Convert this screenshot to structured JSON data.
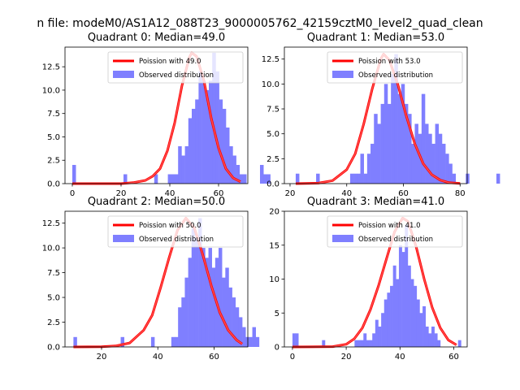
{
  "figure": {
    "suptitle": "n file: modeM0/AS1A12_088T23_9000005762_42159cztM0_level2_quad_clean"
  },
  "colors": {
    "poisson": "#ff0000",
    "observed": "#7f7fff"
  },
  "chart_data": [
    {
      "type": "bar",
      "title": "Quadrant 0: Median=49.0",
      "legend_position": "upper-right",
      "legend": [
        "Poission with 49.0",
        "Observed distribution"
      ],
      "xlim": [
        -3,
        72
      ],
      "ylim": [
        0,
        14.6
      ],
      "xticks": [
        0,
        20,
        40,
        60
      ],
      "yticks": [
        "0.0",
        "2.5",
        "5.0",
        "7.5",
        "10.0",
        "12.5"
      ],
      "hist_x0": 0,
      "hist_bin": 1.4,
      "hist_counts": [
        2,
        0,
        0,
        0,
        0,
        0,
        0,
        0,
        0,
        0,
        0,
        0,
        0,
        0,
        0,
        1,
        0,
        0,
        0,
        0,
        0,
        0,
        0,
        0,
        1,
        0,
        0,
        0,
        1,
        1,
        1,
        4,
        3,
        4,
        7,
        8,
        9,
        12,
        11,
        10,
        11,
        14,
        12,
        9,
        8,
        6,
        4,
        3,
        2,
        1,
        1,
        0,
        0,
        0,
        0,
        2,
        1,
        1
      ],
      "poisson_lambda": 49.0,
      "poisson_peak": 14.0,
      "poisson_points": [
        [
          0,
          0
        ],
        [
          10,
          0
        ],
        [
          20,
          0
        ],
        [
          25,
          0.1
        ],
        [
          30,
          0.35
        ],
        [
          33,
          0.8
        ],
        [
          36,
          1.6
        ],
        [
          39,
          3.5
        ],
        [
          42,
          6.5
        ],
        [
          45,
          10.5
        ],
        [
          48,
          13.5
        ],
        [
          49,
          14.0
        ],
        [
          51,
          13.6
        ],
        [
          54,
          11
        ],
        [
          57,
          7
        ],
        [
          60,
          3.8
        ],
        [
          63,
          1.6
        ],
        [
          66,
          0.6
        ],
        [
          69,
          0.2
        ]
      ]
    },
    {
      "type": "bar",
      "title": "Quadrant 1: Median=53.0",
      "legend_position": "upper-right",
      "legend": [
        "Poission with 53.0",
        "Observed distribution"
      ],
      "xlim": [
        18,
        82.5
      ],
      "ylim": [
        0,
        13.7
      ],
      "xticks": [
        20,
        40,
        60,
        80
      ],
      "yticks": [
        "0.0",
        "2.5",
        "5.0",
        "7.5",
        "10.0",
        "12.5"
      ],
      "hist_x0": 22,
      "hist_bin": 1.2,
      "hist_counts": [
        1,
        0,
        0,
        0,
        0,
        0,
        1,
        0,
        0,
        0,
        0,
        0,
        0,
        0,
        0,
        0,
        1,
        1,
        1,
        3,
        1,
        3,
        4,
        7,
        6,
        8,
        10,
        8,
        11,
        13,
        9,
        10,
        8,
        7,
        4,
        6,
        5,
        9,
        6,
        5,
        4,
        6,
        5,
        4,
        3,
        2,
        1,
        0,
        0,
        0,
        1,
        0,
        0,
        0,
        0,
        0,
        0,
        0,
        0,
        1
      ],
      "poisson_lambda": 53.0,
      "poisson_peak": 13.0,
      "poisson_points": [
        [
          22,
          0
        ],
        [
          30,
          0.05
        ],
        [
          35,
          0.3
        ],
        [
          40,
          1.4
        ],
        [
          43,
          3
        ],
        [
          46,
          6
        ],
        [
          49,
          9.5
        ],
        [
          52,
          12.5
        ],
        [
          53,
          13
        ],
        [
          55,
          12.4
        ],
        [
          58,
          10
        ],
        [
          61,
          6.8
        ],
        [
          64,
          4
        ],
        [
          67,
          2
        ],
        [
          70,
          0.9
        ],
        [
          73,
          0.35
        ],
        [
          76,
          0.1
        ],
        [
          80,
          0.02
        ]
      ]
    },
    {
      "type": "bar",
      "title": "Quadrant 2: Median=50.0",
      "legend_position": "upper-right",
      "legend": [
        "Poission with 50.0",
        "Observed distribution"
      ],
      "xlim": [
        7,
        72
      ],
      "ylim": [
        0,
        13.7
      ],
      "xticks": [
        20,
        40,
        60
      ],
      "yticks": [
        "0.0",
        "2.5",
        "5.0",
        "7.5",
        "10.0",
        "12.5"
      ],
      "hist_x0": 10,
      "hist_bin": 1.2,
      "hist_counts": [
        1,
        0,
        0,
        0,
        0,
        0,
        0,
        0,
        0,
        0,
        0,
        0,
        0,
        0,
        1,
        0,
        0,
        0,
        0,
        0,
        0,
        0,
        0,
        1,
        0,
        0,
        0,
        0,
        0,
        1,
        1,
        4,
        5,
        7,
        9,
        12,
        11,
        13,
        10,
        9,
        10,
        8,
        9,
        10,
        7,
        8,
        6,
        5,
        4,
        3,
        2,
        1,
        1,
        2,
        1
      ],
      "poisson_lambda": 50.0,
      "poisson_peak": 13.0,
      "poisson_points": [
        [
          10,
          0
        ],
        [
          20,
          0.02
        ],
        [
          25,
          0.1
        ],
        [
          30,
          0.4
        ],
        [
          35,
          1.7
        ],
        [
          38,
          3.2
        ],
        [
          41,
          6
        ],
        [
          44,
          9
        ],
        [
          47,
          11.8
        ],
        [
          50,
          13
        ],
        [
          53,
          12
        ],
        [
          56,
          9.3
        ],
        [
          59,
          6.2
        ],
        [
          62,
          3.5
        ],
        [
          65,
          1.7
        ],
        [
          68,
          0.7
        ],
        [
          70,
          0.3
        ]
      ]
    },
    {
      "type": "bar",
      "title": "Quadrant 3: Median=41.0",
      "legend_position": "upper-right",
      "legend": [
        "Poission with 41.0",
        "Observed distribution"
      ],
      "xlim": [
        -3,
        65
      ],
      "ylim": [
        0,
        20
      ],
      "xticks": [
        0,
        20,
        40,
        60
      ],
      "yticks": [
        "0",
        "5",
        "10",
        "15",
        "20"
      ],
      "hist_x0": 0,
      "hist_bin": 1.1,
      "hist_counts": [
        2,
        2,
        0,
        0,
        0,
        0,
        0,
        0,
        0,
        0,
        1,
        0,
        0,
        0,
        0,
        0,
        0,
        0,
        0,
        0,
        0,
        1,
        1,
        1,
        2,
        1,
        1,
        2,
        4,
        3,
        5,
        7,
        8,
        9,
        12,
        10,
        15,
        14,
        18,
        12,
        10,
        9,
        7,
        5,
        6,
        3,
        2,
        3,
        2,
        1,
        0,
        0,
        0,
        0,
        0,
        0,
        1
      ],
      "poisson_lambda": 41.0,
      "poisson_peak": 19.0,
      "poisson_points": [
        [
          0,
          0
        ],
        [
          15,
          0.05
        ],
        [
          20,
          0.4
        ],
        [
          23,
          1.2
        ],
        [
          26,
          2.8
        ],
        [
          29,
          5.5
        ],
        [
          32,
          9
        ],
        [
          35,
          13
        ],
        [
          38,
          17
        ],
        [
          41,
          19
        ],
        [
          43,
          18.5
        ],
        [
          46,
          14.8
        ],
        [
          49,
          10
        ],
        [
          52,
          5.8
        ],
        [
          55,
          2.8
        ],
        [
          58,
          1
        ],
        [
          61,
          0.3
        ]
      ]
    }
  ]
}
